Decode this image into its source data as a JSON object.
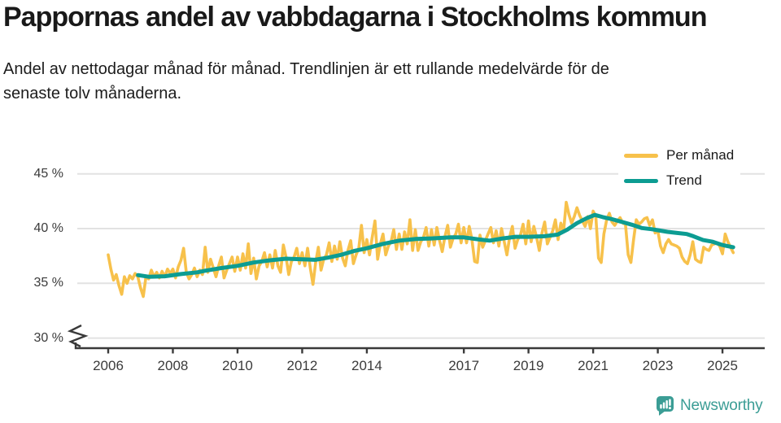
{
  "chart_data": {
    "type": "line",
    "title": "Pappornas andel av vabbdagarna i Stockholms kommun",
    "subtitle_lines": [
      "Andel av nettodagar månad för månad. Trendlinjen är ett rullande medelvärde för de",
      "senaste tolv månaderna."
    ],
    "x_axis": {
      "unit": "year",
      "tick_values": [
        2006,
        2008,
        2010,
        2012,
        2014,
        2017,
        2019,
        2021,
        2023,
        2025
      ],
      "tick_labels": [
        "2006",
        "2008",
        "2010",
        "2012",
        "2014",
        "2017",
        "2019",
        "2021",
        "2023",
        "2025"
      ],
      "x_range": [
        2006.0,
        2025.33
      ]
    },
    "y_axis": {
      "unit": "%",
      "tick_values": [
        45,
        40,
        35,
        30
      ],
      "tick_labels": [
        "45 %",
        "40 %",
        "35 %",
        "30 %"
      ],
      "ylim": [
        30,
        45
      ],
      "axis_break_below": 30,
      "grid": true
    },
    "series": [
      {
        "name": "Per månad",
        "color": "#F7C14B",
        "kind": "monthly_values",
        "x_start": 2006.0,
        "x_step_months": 1,
        "values": [
          37.6,
          36.3,
          35.3,
          35.8,
          34.8,
          34.0,
          35.6,
          35.0,
          35.7,
          35.4,
          35.9,
          35.6,
          34.6,
          33.8,
          35.6,
          35.4,
          36.2,
          35.6,
          36.0,
          35.5,
          36.1,
          35.6,
          36.3,
          35.9,
          36.3,
          35.5,
          36.5,
          37.1,
          38.2,
          36.0,
          35.4,
          35.8,
          36.4,
          35.6,
          36.2,
          35.8,
          38.3,
          36.0,
          37.2,
          36.4,
          35.6,
          36.6,
          37.4,
          35.5,
          36.2,
          36.8,
          37.4,
          36.1,
          37.4,
          36.2,
          37.7,
          36.4,
          38.6,
          35.9,
          37.3,
          35.4,
          36.6,
          37.0,
          37.8,
          36.5,
          37.6,
          36.4,
          38.0,
          36.6,
          36.0,
          38.5,
          37.4,
          35.8,
          37.0,
          37.4,
          38.2,
          36.8,
          37.8,
          36.6,
          38.2,
          36.4,
          34.9,
          36.9,
          38.3,
          36.2,
          37.2,
          37.6,
          38.7,
          37.0,
          38.4,
          37.2,
          38.8,
          37.3,
          36.6,
          38.0,
          38.9,
          36.8,
          37.6,
          38.2,
          40.3,
          37.8,
          39.0,
          37.6,
          39.2,
          40.7,
          37.2,
          38.6,
          39.5,
          37.6,
          38.4,
          38.8,
          39.9,
          38.1,
          39.5,
          38.1,
          39.7,
          38.6,
          40.8,
          38.0,
          39.9,
          38.0,
          38.8,
          39.2,
          40.1,
          38.4,
          39.9,
          38.5,
          40.1,
          38.9,
          37.9,
          39.3,
          40.3,
          38.3,
          39.1,
          39.5,
          40.4,
          38.7,
          40.1,
          38.7,
          40.2,
          39.0,
          37.0,
          36.9,
          39.4,
          38.3,
          38.9,
          39.5,
          40.1,
          38.7,
          39.8,
          38.4,
          40.0,
          38.8,
          37.6,
          39.2,
          40.2,
          38.2,
          39.0,
          39.4,
          40.4,
          38.6,
          40.7,
          38.8,
          40.2,
          39.2,
          38.0,
          39.6,
          40.6,
          38.6,
          39.2,
          39.8,
          40.8,
          39.0,
          40.5,
          39.7,
          42.4,
          41.3,
          40.5,
          41.1,
          41.9,
          41.2,
          40.7,
          40.2,
          41.1,
          40.0,
          41.6,
          41.1,
          37.3,
          36.9,
          39.5,
          40.8,
          41.4,
          40.6,
          40.3,
          40.7,
          41.0,
          40.5,
          40.4,
          37.6,
          36.9,
          39.0,
          40.8,
          40.4,
          40.6,
          40.9,
          41.0,
          40.3,
          40.8,
          39.6,
          39.8,
          38.4,
          37.8,
          38.6,
          39.0,
          38.6,
          38.5,
          38.4,
          38.2,
          37.4,
          37.0,
          36.8,
          37.6,
          38.8,
          37.2,
          37.0,
          36.9,
          38.3,
          38.1,
          38.0,
          38.5,
          38.6,
          38.7,
          38.4,
          37.7,
          39.5,
          38.8,
          38.3,
          37.8
        ]
      },
      {
        "name": "Trend",
        "color": "#0C9C92",
        "kind": "rolling_mean",
        "window_months": 12,
        "points": [
          [
            2006.92,
            35.75
          ],
          [
            2007.25,
            35.6
          ],
          [
            2007.75,
            35.65
          ],
          [
            2008.25,
            35.85
          ],
          [
            2008.75,
            36.0
          ],
          [
            2009.0,
            36.15
          ],
          [
            2009.5,
            36.4
          ],
          [
            2010.0,
            36.6
          ],
          [
            2010.5,
            36.9
          ],
          [
            2011.0,
            37.1
          ],
          [
            2011.5,
            37.25
          ],
          [
            2012.0,
            37.2
          ],
          [
            2012.4,
            37.15
          ],
          [
            2012.8,
            37.35
          ],
          [
            2013.2,
            37.6
          ],
          [
            2013.6,
            37.95
          ],
          [
            2014.0,
            38.2
          ],
          [
            2014.5,
            38.6
          ],
          [
            2015.0,
            38.9
          ],
          [
            2015.5,
            39.05
          ],
          [
            2016.0,
            39.1
          ],
          [
            2016.6,
            39.2
          ],
          [
            2017.0,
            39.2
          ],
          [
            2017.5,
            39.0
          ],
          [
            2017.8,
            38.9
          ],
          [
            2018.2,
            39.1
          ],
          [
            2018.6,
            39.25
          ],
          [
            2019.0,
            39.25
          ],
          [
            2019.5,
            39.3
          ],
          [
            2019.9,
            39.45
          ],
          [
            2020.2,
            39.9
          ],
          [
            2020.5,
            40.5
          ],
          [
            2020.8,
            40.95
          ],
          [
            2021.05,
            41.25
          ],
          [
            2021.3,
            41.05
          ],
          [
            2021.6,
            40.85
          ],
          [
            2021.9,
            40.6
          ],
          [
            2022.2,
            40.35
          ],
          [
            2022.5,
            40.05
          ],
          [
            2022.8,
            39.95
          ],
          [
            2023.0,
            39.85
          ],
          [
            2023.3,
            39.7
          ],
          [
            2023.6,
            39.6
          ],
          [
            2023.9,
            39.5
          ],
          [
            2024.1,
            39.3
          ],
          [
            2024.4,
            38.95
          ],
          [
            2024.7,
            38.8
          ],
          [
            2025.0,
            38.5
          ],
          [
            2025.33,
            38.3
          ]
        ]
      }
    ],
    "legend_position": "top-right",
    "grid_color": "#e2e2e2",
    "axis_color": "#3a3a3a"
  },
  "footer": {
    "brand": "Newsworthy",
    "brand_color": "#3b9d95"
  }
}
